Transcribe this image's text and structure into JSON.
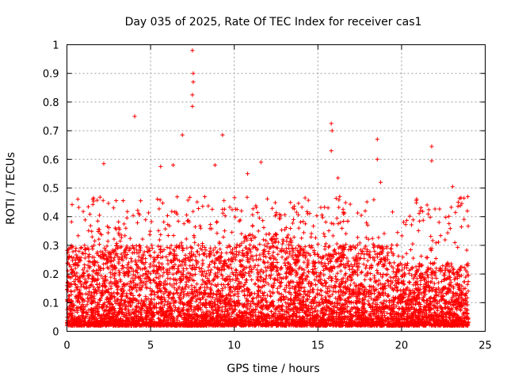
{
  "chart_data": {
    "type": "scatter",
    "title": "Day 035 of 2025, Rate Of TEC Index for receiver cas1",
    "xlabel": "GPS time / hours",
    "ylabel": "ROTI / TECUs",
    "xlim": [
      0,
      25
    ],
    "ylim": [
      0,
      1
    ],
    "xticks": [
      0,
      5,
      10,
      15,
      20,
      25
    ],
    "yticks": [
      0,
      0.1,
      0.2,
      0.3,
      0.4,
      0.5,
      0.6,
      0.7,
      0.8,
      0.9,
      1
    ],
    "xtick_labels": [
      "0",
      "5",
      "10",
      "15",
      "20",
      "25"
    ],
    "ytick_labels": [
      "0",
      "0.1",
      "0.2",
      "0.3",
      "0.4",
      "0.5",
      "0.6",
      "0.7",
      "0.8",
      "0.9",
      "1"
    ],
    "grid": true,
    "marker": "plus",
    "color": "#ff0000",
    "data_coverage_hours": [
      0,
      24
    ],
    "series": [
      {
        "name": "ROTI",
        "dense_band": {
          "min": 0.02,
          "typical_max": 0.3
        },
        "notable_points": [
          {
            "x": 4.05,
            "y": 0.75
          },
          {
            "x": 6.9,
            "y": 0.685
          },
          {
            "x": 7.5,
            "y": 0.98
          },
          {
            "x": 7.55,
            "y": 0.9
          },
          {
            "x": 7.55,
            "y": 0.87
          },
          {
            "x": 7.5,
            "y": 0.825
          },
          {
            "x": 7.5,
            "y": 0.785
          },
          {
            "x": 9.3,
            "y": 0.685
          },
          {
            "x": 15.8,
            "y": 0.725
          },
          {
            "x": 15.85,
            "y": 0.7
          },
          {
            "x": 15.8,
            "y": 0.63
          },
          {
            "x": 18.55,
            "y": 0.67
          },
          {
            "x": 18.55,
            "y": 0.6
          },
          {
            "x": 21.8,
            "y": 0.645
          },
          {
            "x": 21.8,
            "y": 0.595
          },
          {
            "x": 23.05,
            "y": 0.505
          },
          {
            "x": 2.2,
            "y": 0.585
          },
          {
            "x": 11.6,
            "y": 0.59
          },
          {
            "x": 16.2,
            "y": 0.535
          },
          {
            "x": 18.75,
            "y": 0.52
          },
          {
            "x": 5.6,
            "y": 0.575
          },
          {
            "x": 6.35,
            "y": 0.58
          },
          {
            "x": 8.85,
            "y": 0.58
          },
          {
            "x": 10.8,
            "y": 0.55
          }
        ]
      }
    ]
  }
}
